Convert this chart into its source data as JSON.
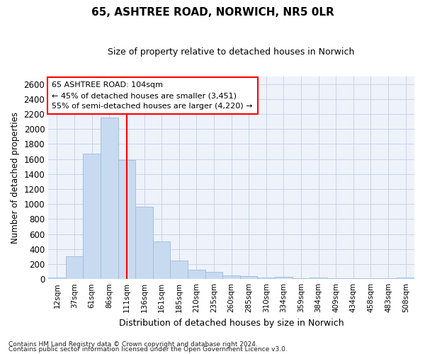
{
  "title": "65, ASHTREE ROAD, NORWICH, NR5 0LR",
  "subtitle": "Size of property relative to detached houses in Norwich",
  "xlabel": "Distribution of detached houses by size in Norwich",
  "ylabel": "Number of detached properties",
  "bar_color": "#c8daf0",
  "bar_edge_color": "#9abcde",
  "categories": [
    "12sqm",
    "37sqm",
    "61sqm",
    "86sqm",
    "111sqm",
    "136sqm",
    "161sqm",
    "185sqm",
    "210sqm",
    "235sqm",
    "260sqm",
    "285sqm",
    "310sqm",
    "334sqm",
    "359sqm",
    "384sqm",
    "409sqm",
    "434sqm",
    "458sqm",
    "483sqm",
    "508sqm"
  ],
  "values": [
    25,
    300,
    1670,
    2150,
    1590,
    960,
    500,
    250,
    120,
    100,
    50,
    35,
    25,
    30,
    15,
    20,
    15,
    15,
    15,
    15,
    25
  ],
  "ylim": [
    0,
    2700
  ],
  "yticks": [
    0,
    200,
    400,
    600,
    800,
    1000,
    1200,
    1400,
    1600,
    1800,
    2000,
    2200,
    2400,
    2600
  ],
  "property_label": "65 ASHTREE ROAD: 104sqm",
  "annotation_line1": "← 45% of detached houses are smaller (3,451)",
  "annotation_line2": "55% of semi-detached houses are larger (4,220) →",
  "vline_color": "red",
  "annotation_box_color": "red",
  "grid_color": "#c8d4e8",
  "background_color": "#eef2fa",
  "footnote1": "Contains HM Land Registry data © Crown copyright and database right 2024.",
  "footnote2": "Contains public sector information licensed under the Open Government Licence v3.0."
}
